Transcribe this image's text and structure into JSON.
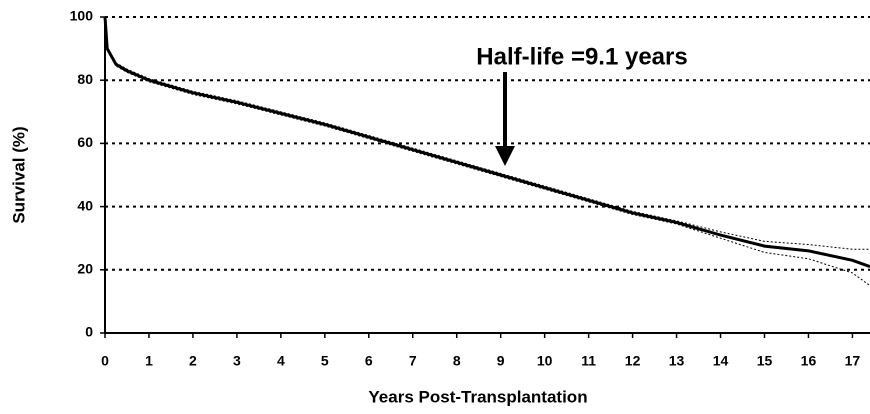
{
  "chart_data": {
    "type": "line",
    "xlabel": "Years Post-Transplantation",
    "ylabel": "Survival (%)",
    "annotation": "Half-life =9.1 years",
    "x": [
      0,
      0.05,
      0.25,
      0.5,
      1,
      2,
      3,
      4,
      5,
      6,
      7,
      8,
      9,
      10,
      11,
      12,
      13,
      14,
      15,
      16,
      17,
      17.4
    ],
    "series": [
      {
        "color": "#000000",
        "style": "solid",
        "values": [
          100,
          90,
          85,
          83,
          80,
          76,
          73,
          69.5,
          66,
          62,
          58,
          54,
          50,
          46,
          42,
          38,
          35,
          31,
          27.5,
          26,
          23,
          21
        ]
      },
      {
        "color": "#000000",
        "style": "dotted",
        "values": [
          100,
          90.5,
          85.5,
          83.5,
          80.5,
          76.5,
          73.5,
          70,
          66.5,
          62.5,
          58.5,
          54.5,
          50.5,
          46.5,
          42.5,
          38.5,
          35.5,
          32,
          29,
          28,
          26.5,
          26.5
        ]
      },
      {
        "color": "#000000",
        "style": "dotted",
        "values": [
          100,
          89.5,
          84.5,
          82.5,
          79.5,
          75.5,
          72.5,
          69,
          65.5,
          61.5,
          57.5,
          53.5,
          49.5,
          45.5,
          41.5,
          37.5,
          34.5,
          30,
          25.5,
          23.5,
          19,
          15
        ]
      }
    ],
    "xlim": [
      0,
      17.4
    ],
    "ylim": [
      0,
      100
    ],
    "xticks": [
      0,
      1,
      2,
      3,
      4,
      5,
      6,
      7,
      8,
      9,
      10,
      11,
      12,
      13,
      14,
      15,
      16,
      17
    ],
    "yticks": [
      0,
      20,
      40,
      60,
      80,
      100
    ],
    "grid": true
  }
}
